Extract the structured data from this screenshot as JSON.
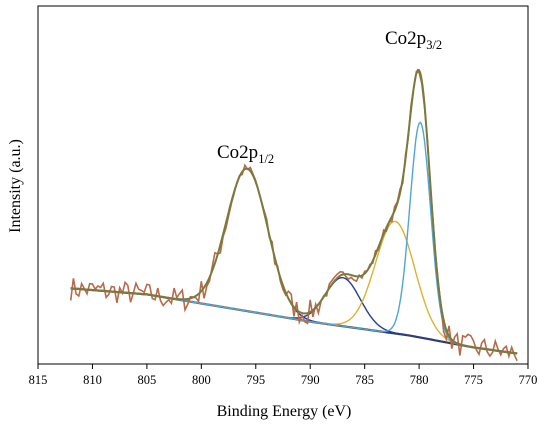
{
  "chart_data": {
    "type": "line",
    "title": "",
    "xlabel": "Binding Energy (eV)",
    "ylabel": "Intensity (a.u.)",
    "xlim": [
      815,
      770
    ],
    "x_reversed": true,
    "x_ticks": [
      815,
      810,
      805,
      800,
      795,
      790,
      785,
      780,
      775,
      770
    ],
    "ylim": [
      0,
      100
    ],
    "y_tick_labels": false,
    "grid": false,
    "legend": "none",
    "annotations": [
      {
        "main": "Co2p",
        "sub": "1/2",
        "x": 796
      },
      {
        "main": "Co2p",
        "sub": "3/2",
        "x": 780
      }
    ],
    "colors": {
      "raw": "#b86a4a",
      "envelope": "#7a7a3c",
      "background": "#4b3328",
      "peak_796": "#1f3a9a",
      "peak_787": "#243f8e",
      "peak_782": "#d9b431",
      "peak_780": "#4fa6d6",
      "axis": "#000000"
    },
    "background_points": {
      "x": [
        812,
        805,
        800,
        795,
        790,
        787,
        784,
        781,
        778,
        775,
        772,
        771
      ],
      "y": [
        22,
        20,
        17,
        14,
        11,
        9.5,
        8.0,
        6.5,
        4.5,
        2.5,
        1.0,
        0.5
      ]
    },
    "peaks": [
      {
        "center": 795.8,
        "height": 47,
        "width": 1.9
      },
      {
        "center": 787.0,
        "height": 16,
        "width": 1.6
      },
      {
        "center": 782.2,
        "height": 37,
        "width": 1.8
      },
      {
        "center": 779.9,
        "height": 71,
        "width": 0.95
      }
    ]
  }
}
